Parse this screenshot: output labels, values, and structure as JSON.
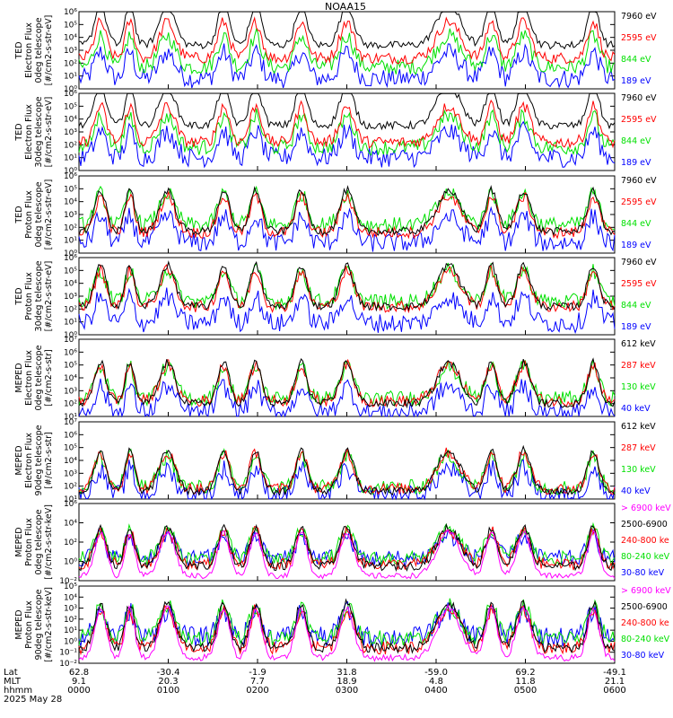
{
  "title": "NOAA15",
  "colors": {
    "black": "#000000",
    "red": "#ff0000",
    "green": "#00e000",
    "blue": "#0000ff",
    "magenta": "#ff00ff"
  },
  "footer": {
    "row_labels": [
      "Lat",
      "MLT",
      "hhmm",
      "2025 May 28"
    ],
    "ticks": [
      {
        "lat": "62.8",
        "mlt": "9.1",
        "hhmm": "0000"
      },
      {
        "lat": "-30.4",
        "mlt": "20.3",
        "hhmm": "0100"
      },
      {
        "lat": "-1.9",
        "mlt": "7.7",
        "hhmm": "0200"
      },
      {
        "lat": "31.8",
        "mlt": "18.9",
        "hhmm": "0300"
      },
      {
        "lat": "-59.0",
        "mlt": "4.8",
        "hhmm": "0400"
      },
      {
        "lat": "69.2",
        "mlt": "11.8",
        "hhmm": "0500"
      },
      {
        "lat": "-49.1",
        "mlt": "21.1",
        "hhmm": "0600"
      }
    ]
  },
  "chart_data": [
    {
      "type": "line",
      "ylabel_lines": [
        "TED",
        "Electron Flux",
        "0deg telescope",
        "[#/cm2-s-str-eV]"
      ],
      "ylog": true,
      "ylim_exp": [
        0,
        6
      ],
      "tick_exps": [
        0,
        1,
        2,
        3,
        4,
        5,
        6
      ],
      "legend": [
        {
          "label": "7960 eV",
          "color": "black"
        },
        {
          "label": "2595 eV",
          "color": "red"
        },
        {
          "label": "844 eV",
          "color": "green"
        },
        {
          "label": "189 eV",
          "color": "blue"
        }
      ],
      "baseline": [
        3.4,
        2.4,
        1.7,
        0.8
      ]
    },
    {
      "type": "line",
      "ylabel_lines": [
        "TED",
        "Electron Flux",
        "30deg telescope",
        "[#/cm2-s-str-eV]"
      ],
      "ylog": true,
      "ylim_exp": [
        0,
        6
      ],
      "tick_exps": [
        0,
        1,
        2,
        3,
        4,
        5,
        6
      ],
      "legend": [
        {
          "label": "7960 eV",
          "color": "black"
        },
        {
          "label": "2595 eV",
          "color": "red"
        },
        {
          "label": "844 eV",
          "color": "green"
        },
        {
          "label": "189 eV",
          "color": "blue"
        }
      ],
      "baseline": [
        3.5,
        2.2,
        1.8,
        1.0
      ]
    },
    {
      "type": "line",
      "ylabel_lines": [
        "TED",
        "Proton Flux",
        "0deg telescope",
        "[#/cm2-s-str-eV]"
      ],
      "ylog": true,
      "ylim_exp": [
        0,
        6
      ],
      "tick_exps": [
        0,
        1,
        2,
        3,
        4,
        5,
        6
      ],
      "legend": [
        {
          "label": "7960 eV",
          "color": "black"
        },
        {
          "label": "2595 eV",
          "color": "red"
        },
        {
          "label": "844 eV",
          "color": "green"
        },
        {
          "label": "189 eV",
          "color": "blue"
        }
      ],
      "baseline": [
        1.7,
        1.6,
        2.2,
        0.8
      ]
    },
    {
      "type": "line",
      "ylabel_lines": [
        "TED",
        "Proton Flux",
        "30deg telescope",
        "[#/cm2-s-str-eV]"
      ],
      "ylog": true,
      "ylim_exp": [
        0,
        6
      ],
      "tick_exps": [
        0,
        1,
        2,
        3,
        4,
        5,
        6
      ],
      "legend": [
        {
          "label": "7960 eV",
          "color": "black"
        },
        {
          "label": "2595 eV",
          "color": "red"
        },
        {
          "label": "844 eV",
          "color": "green"
        },
        {
          "label": "189 eV",
          "color": "blue"
        }
      ],
      "baseline": [
        2.2,
        2.2,
        2.6,
        0.9
      ]
    },
    {
      "type": "line",
      "ylabel_lines": [
        "MEPED",
        "Electron Flux",
        "0deg telescope",
        "[#/cm2-s-str]"
      ],
      "ylog": true,
      "ylim_exp": [
        1,
        7
      ],
      "tick_exps": [
        1,
        2,
        3,
        4,
        5,
        6,
        7
      ],
      "legend": [
        {
          "label": "612 keV",
          "color": "black"
        },
        {
          "label": "287 keV",
          "color": "red"
        },
        {
          "label": "130 keV",
          "color": "green"
        },
        {
          "label": "40 keV",
          "color": "blue"
        }
      ],
      "baseline": [
        2.0,
        2.2,
        2.4,
        1.3
      ]
    },
    {
      "type": "line",
      "ylabel_lines": [
        "MEPED",
        "Electron Flux",
        "90deg telescope",
        "[#/cm2-s-str]"
      ],
      "ylog": true,
      "ylim_exp": [
        1,
        7
      ],
      "tick_exps": [
        1,
        2,
        3,
        4,
        5,
        6,
        7
      ],
      "legend": [
        {
          "label": "612 keV",
          "color": "black"
        },
        {
          "label": "287 keV",
          "color": "red"
        },
        {
          "label": "130 keV",
          "color": "green"
        },
        {
          "label": "40 keV",
          "color": "blue"
        }
      ],
      "baseline": [
        1.6,
        1.8,
        1.9,
        1.3
      ]
    },
    {
      "type": "line",
      "ylabel_lines": [
        "MEPED",
        "Proton Flux",
        "0deg telescope",
        "[#/cm2-s-str-keV]"
      ],
      "ylog": true,
      "ylim_exp": [
        -2,
        6
      ],
      "tick_exps": [
        -2,
        0,
        2,
        4,
        6
      ],
      "legend": [
        {
          "label": "> 6900 keV",
          "color": "magenta"
        },
        {
          "label": "2500-6900",
          "color": "black"
        },
        {
          "label": "240-800 ke",
          "color": "red"
        },
        {
          "label": "80-240 keV",
          "color": "green"
        },
        {
          "label": "30-80 keV",
          "color": "blue"
        }
      ],
      "baseline": [
        -1.5,
        -0.5,
        -0.3,
        0.3,
        0.3
      ]
    },
    {
      "type": "line",
      "ylabel_lines": [
        "MEPED",
        "Proton Flux",
        "90deg telescope",
        "[#/cm2-s-str-keV]"
      ],
      "ylog": true,
      "ylim_exp": [
        -2,
        5
      ],
      "tick_exps": [
        -2,
        -1,
        0,
        1,
        2,
        3,
        4,
        5
      ],
      "legend": [
        {
          "label": "> 6900 keV",
          "color": "magenta"
        },
        {
          "label": "2500-6900",
          "color": "black"
        },
        {
          "label": "240-800 ke",
          "color": "red"
        },
        {
          "label": "80-240 keV",
          "color": "green"
        },
        {
          "label": "30-80 keV",
          "color": "blue"
        }
      ],
      "baseline": [
        -1.5,
        -0.6,
        -0.6,
        0.3,
        0.4
      ]
    }
  ],
  "events": [
    {
      "x": 0.04,
      "w": 0.015
    },
    {
      "x": 0.095,
      "w": 0.012
    },
    {
      "x": 0.165,
      "w": 0.02
    },
    {
      "x": 0.27,
      "w": 0.015
    },
    {
      "x": 0.33,
      "w": 0.015
    },
    {
      "x": 0.415,
      "w": 0.015
    },
    {
      "x": 0.5,
      "w": 0.018
    },
    {
      "x": 0.69,
      "w": 0.03
    },
    {
      "x": 0.77,
      "w": 0.015
    },
    {
      "x": 0.83,
      "w": 0.018
    },
    {
      "x": 0.96,
      "w": 0.015
    }
  ]
}
